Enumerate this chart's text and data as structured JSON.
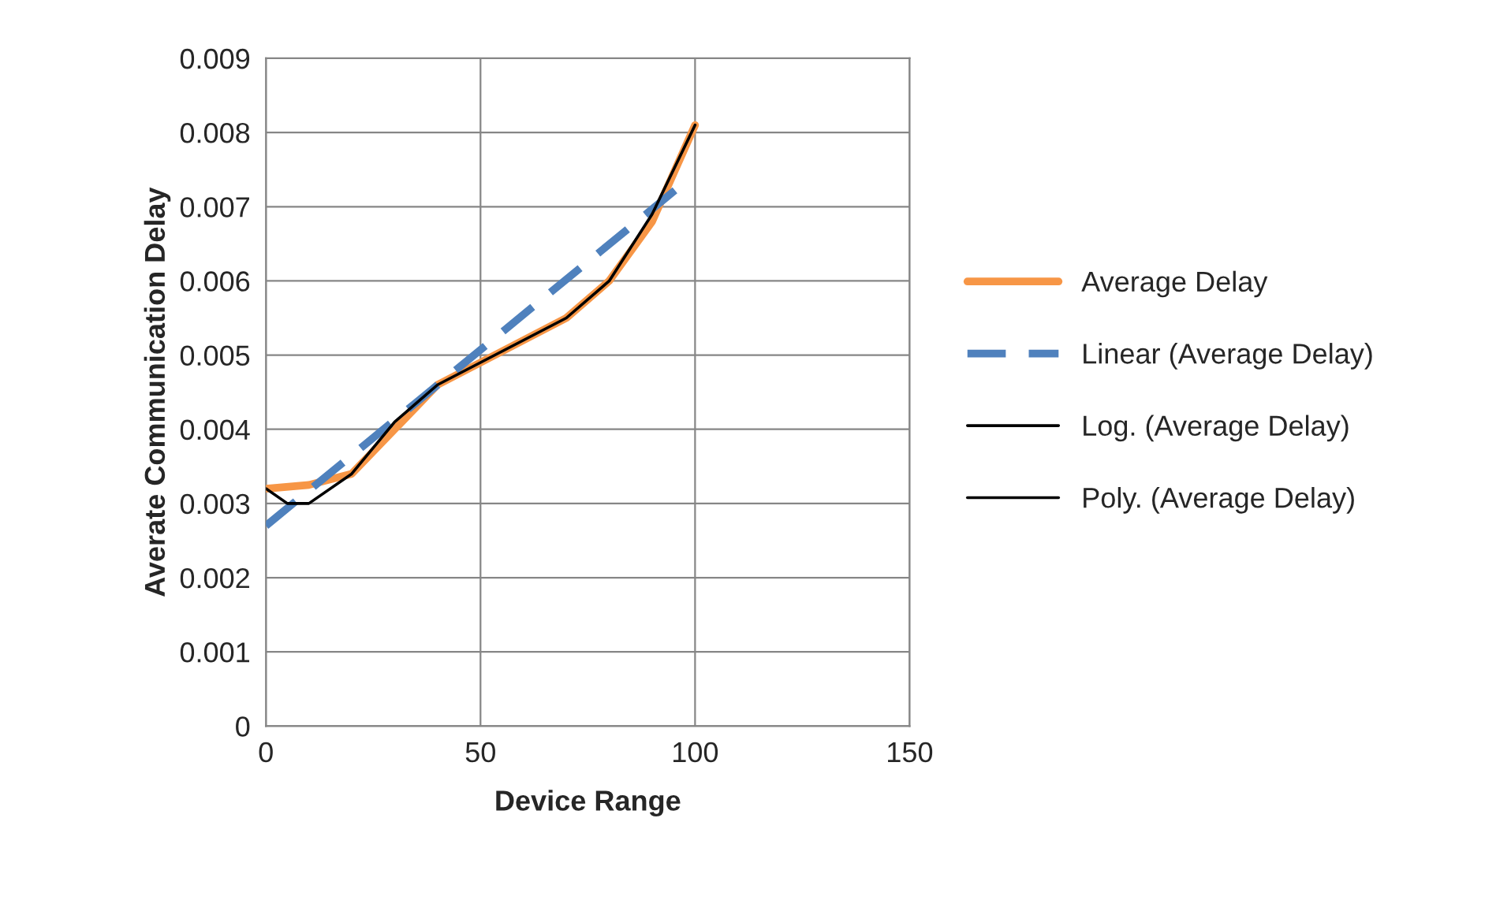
{
  "chart_data": {
    "type": "line",
    "xlabel": "Device Range",
    "ylabel": "Averate Communication Delay",
    "xlim": [
      0,
      150
    ],
    "xticks": [
      0,
      50,
      100,
      150
    ],
    "ylim": [
      0,
      0.009
    ],
    "yticks": [
      0,
      0.001,
      0.002,
      0.003,
      0.004,
      0.005,
      0.006,
      0.007,
      0.008,
      0.009
    ],
    "grid": true,
    "legend": "right",
    "marker": "none",
    "series": [
      {
        "name": "Average Delay",
        "color": "#f79646",
        "line_style": "solid",
        "x": [
          0,
          10,
          20,
          30,
          40,
          50,
          60,
          70,
          80,
          90,
          100
        ],
        "values": [
          0.0032,
          0.00325,
          0.0034,
          0.004,
          0.0046,
          0.0049,
          0.0052,
          0.0055,
          0.006,
          0.0068,
          0.0081
        ]
      },
      {
        "name": "Linear (Average Delay)",
        "color": "#4f81bd",
        "line_style": "dashed",
        "x": [
          0,
          97
        ],
        "values": [
          0.0027,
          0.0073
        ]
      },
      {
        "name": "Log. (Average Delay)",
        "color": "#000000",
        "line_style": "solid"
      },
      {
        "name": "Poly. (Average Delay)",
        "color": "#000000",
        "line_style": "solid",
        "x": [
          0,
          5,
          10,
          20,
          30,
          40,
          50,
          60,
          70,
          80,
          90,
          100
        ],
        "values": [
          0.0032,
          0.003,
          0.003,
          0.0034,
          0.0041,
          0.0046,
          0.0049,
          0.0052,
          0.0055,
          0.006,
          0.0069,
          0.0081
        ]
      }
    ]
  }
}
